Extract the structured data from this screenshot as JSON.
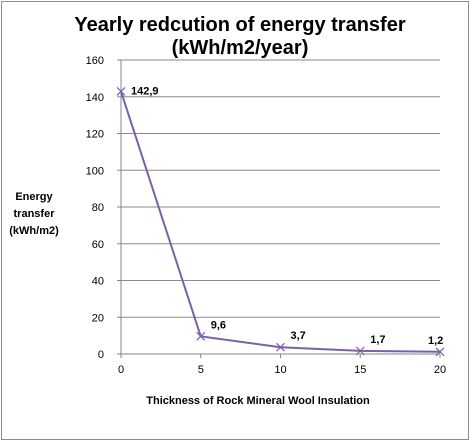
{
  "chart_data": {
    "type": "line",
    "title_lines": [
      "Yearly redcution of energy transfer",
      "(kWh/m2/year)"
    ],
    "xlabel": "Thickness  of Rock Mineral Wool Insulation",
    "ylabel_lines": [
      "Energy",
      "transfer",
      "(kWh/m2)"
    ],
    "x": [
      0,
      5,
      10,
      15,
      20
    ],
    "x_ticks": [
      "0",
      "5",
      "10",
      "15",
      "20"
    ],
    "series": [
      {
        "values": [
          142.9,
          9.6,
          3.7,
          1.7,
          1.2
        ]
      }
    ],
    "data_labels": [
      "142,9",
      "9,6",
      "3,7",
      "1,7",
      "1,2"
    ],
    "ylim": [
      0,
      160
    ],
    "y_ticks": [
      0,
      20,
      40,
      60,
      80,
      100,
      120,
      140,
      160
    ],
    "grid": true,
    "legend": "none",
    "line_color": "#7b5fa8",
    "marker": "x"
  }
}
